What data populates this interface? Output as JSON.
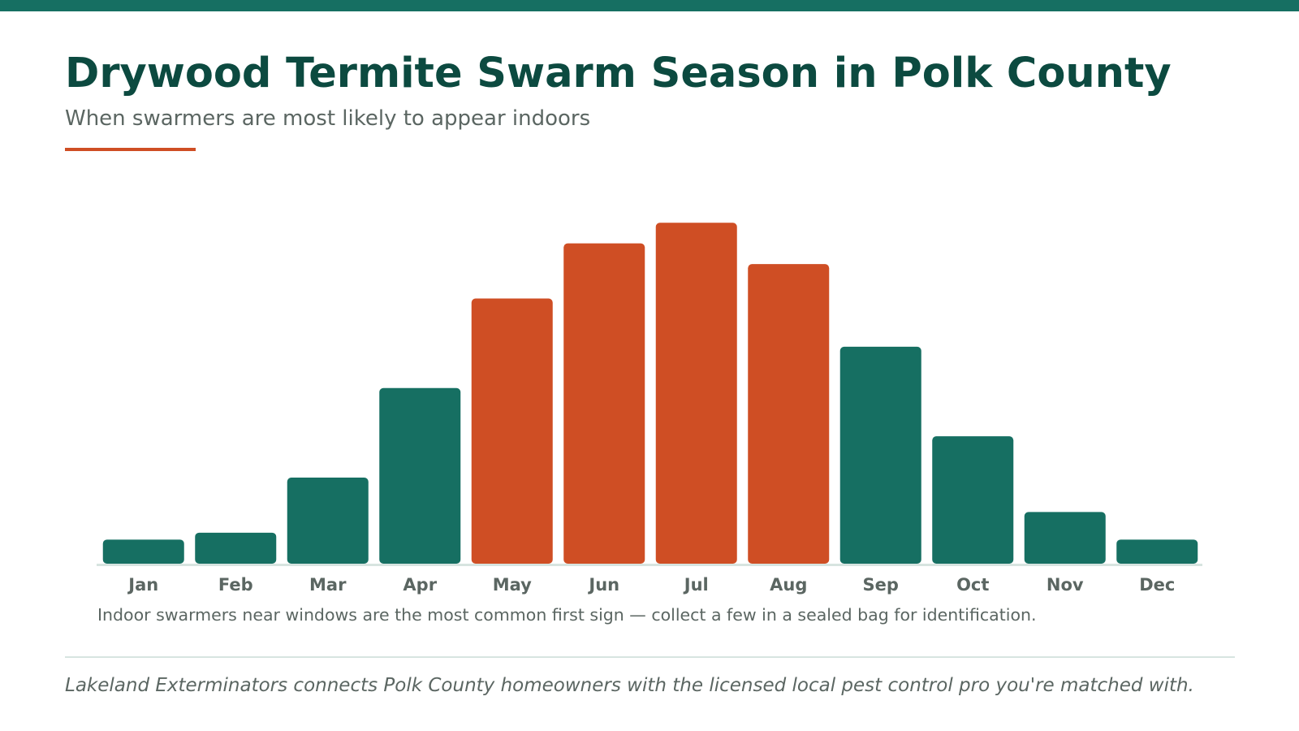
{
  "title": "Drywood Termite Swarm Season in Polk County",
  "subtitle": "When swarmers are most likely to appear indoors",
  "note": "Indoor swarmers near windows are the most common first sign — collect a few in a sealed bag for identification.",
  "footer": "Lakeland Exterminators connects Polk County homeowners with the licensed local pest control pro you're matched with.",
  "colors": {
    "brand": "#166f62",
    "peak": "#cf4e24",
    "title": "#0c4a40",
    "muted": "#5b6662",
    "baseline": "#d7e4e0"
  },
  "chart_data": {
    "type": "bar",
    "title": "Drywood Termite Swarm Season in Polk County",
    "subtitle": "When swarmers are most likely to appear indoors",
    "xlabel": "",
    "ylabel": "",
    "categories": [
      "Jan",
      "Feb",
      "Mar",
      "Apr",
      "May",
      "Jun",
      "Jul",
      "Aug",
      "Sep",
      "Oct",
      "Nov",
      "Dec"
    ],
    "values": [
      7,
      9,
      25,
      51,
      77,
      93,
      99,
      87,
      63,
      37,
      15,
      7
    ],
    "peak_months": [
      "May",
      "Jun",
      "Jul",
      "Aug"
    ],
    "ylim": [
      0,
      100
    ],
    "grid": false,
    "legend": "none"
  }
}
